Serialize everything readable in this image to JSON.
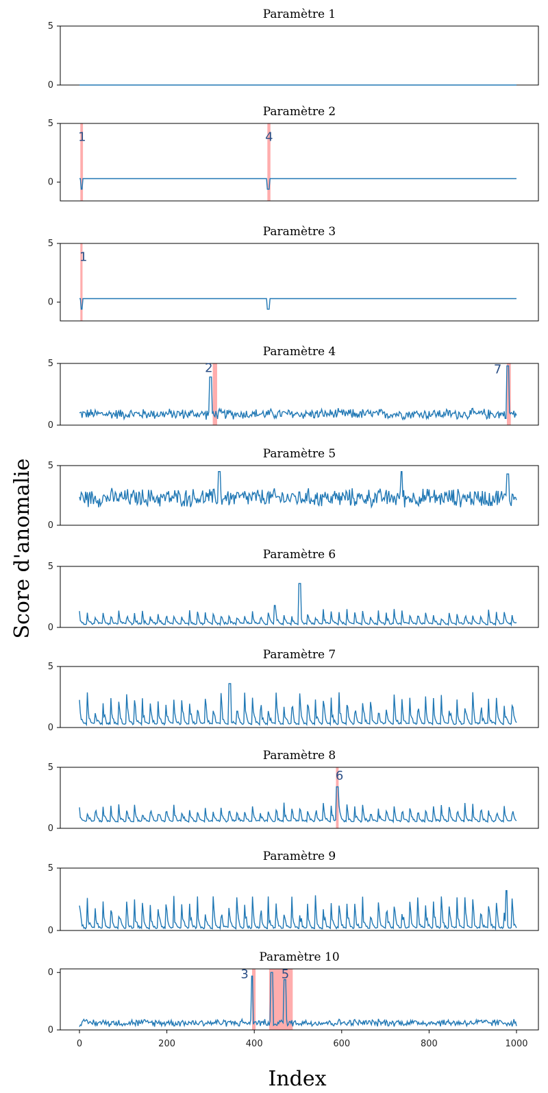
{
  "chart_data": {
    "type": "line",
    "xlabel": "Index",
    "ylabel": "Score d'anomalie",
    "x_ticks": [
      "0",
      "200",
      "400",
      "600",
      "800",
      "1000"
    ],
    "xlim": [
      0,
      1000
    ],
    "line_color": "#1f77b4",
    "highlight_color": "#ff8a8a",
    "panels": [
      {
        "title": "Paramètre 1",
        "ylim": [
          0,
          5
        ],
        "y_ticks": [
          "0",
          "5"
        ],
        "base": 0,
        "profile": "flat",
        "spikes": [],
        "highlights": [],
        "labels": []
      },
      {
        "title": "Paramètre 2",
        "ylim": [
          -1.6,
          5
        ],
        "y_ticks": [
          "0",
          "5"
        ],
        "base": 0.3,
        "profile": "flat",
        "spikes": [
          {
            "x": 5,
            "y": -0.6
          },
          {
            "x": 432,
            "y": -0.6
          }
        ],
        "highlights": [
          [
            2,
            8
          ],
          [
            430,
            437
          ]
        ],
        "labels": [
          {
            "text": "1",
            "x": 6,
            "y": 3.5
          },
          {
            "text": "4",
            "x": 434,
            "y": 3.5
          }
        ]
      },
      {
        "title": "Paramètre 3",
        "ylim": [
          -1.6,
          5
        ],
        "y_ticks": [
          "0",
          "5"
        ],
        "base": 0.3,
        "profile": "flat",
        "spikes": [
          {
            "x": 5,
            "y": -0.6
          },
          {
            "x": 432,
            "y": -0.6
          }
        ],
        "highlights": [
          [
            2,
            7
          ]
        ],
        "labels": [
          {
            "text": "1",
            "x": 9,
            "y": 3.5
          }
        ]
      },
      {
        "title": "Paramètre 4",
        "ylim": [
          0,
          5
        ],
        "y_ticks": [
          "0",
          "5"
        ],
        "base": 0.9,
        "profile": "noise",
        "amp": 0.5,
        "spikes": [
          {
            "x": 300,
            "y": 3.9
          },
          {
            "x": 980,
            "y": 4.8
          }
        ],
        "highlights": [
          [
            305,
            315
          ],
          [
            978,
            987
          ]
        ],
        "labels": [
          {
            "text": "2",
            "x": 296,
            "y": 4.3
          },
          {
            "text": "7",
            "x": 957,
            "y": 4.2
          }
        ]
      },
      {
        "title": "Paramètre 5",
        "ylim": [
          0,
          5
        ],
        "y_ticks": [
          "0",
          "5"
        ],
        "base": 2.3,
        "profile": "noise",
        "amp": 0.9,
        "spikes": [
          {
            "x": 320,
            "y": 4.5
          },
          {
            "x": 737,
            "y": 4.5
          },
          {
            "x": 980,
            "y": 4.3
          }
        ],
        "highlights": [],
        "labels": []
      },
      {
        "title": "Paramètre 6",
        "ylim": [
          0,
          5
        ],
        "y_ticks": [
          "0",
          "5"
        ],
        "base": 0.2,
        "profile": "bumps",
        "amp": 1.0,
        "spikes": [
          {
            "x": 504,
            "y": 3.6
          },
          {
            "x": 447,
            "y": 1.8
          }
        ],
        "highlights": [],
        "labels": []
      },
      {
        "title": "Paramètre 7",
        "ylim": [
          0,
          5
        ],
        "y_ticks": [
          "0",
          "5"
        ],
        "base": 0.2,
        "profile": "bumps",
        "amp": 2.2,
        "spikes": [
          {
            "x": 344,
            "y": 3.6
          }
        ],
        "highlights": [],
        "labels": []
      },
      {
        "title": "Paramètre 8",
        "ylim": [
          0,
          5
        ],
        "y_ticks": [
          "0",
          "5"
        ],
        "base": 0.5,
        "profile": "bumps",
        "amp": 1.3,
        "spikes": [
          {
            "x": 590,
            "y": 3.4
          }
        ],
        "highlights": [
          [
            587,
            593
          ]
        ],
        "labels": [
          {
            "text": "6",
            "x": 595,
            "y": 4.0
          }
        ]
      },
      {
        "title": "Paramètre 9",
        "ylim": [
          0,
          5
        ],
        "y_ticks": [
          "0",
          "5"
        ],
        "base": 0.1,
        "profile": "bumps",
        "amp": 2.2,
        "spikes": [
          {
            "x": 977,
            "y": 3.2
          }
        ],
        "highlights": [],
        "labels": []
      },
      {
        "title": "Paramètre 10",
        "ylim": [
          0,
          0.85
        ],
        "y_ticks": [
          "0",
          "0"
        ],
        "base": 0.1,
        "profile": "noise",
        "amp": 0.06,
        "spikes": [
          {
            "x": 395,
            "y": 0.75
          },
          {
            "x": 440,
            "y": 0.8
          },
          {
            "x": 470,
            "y": 0.7
          }
        ],
        "highlights": [
          [
            395,
            403
          ],
          [
            434,
            488
          ]
        ],
        "labels": [
          {
            "text": "3",
            "x": 378,
            "y": 0.72
          },
          {
            "text": "5",
            "x": 471,
            "y": 0.72
          }
        ]
      }
    ]
  }
}
